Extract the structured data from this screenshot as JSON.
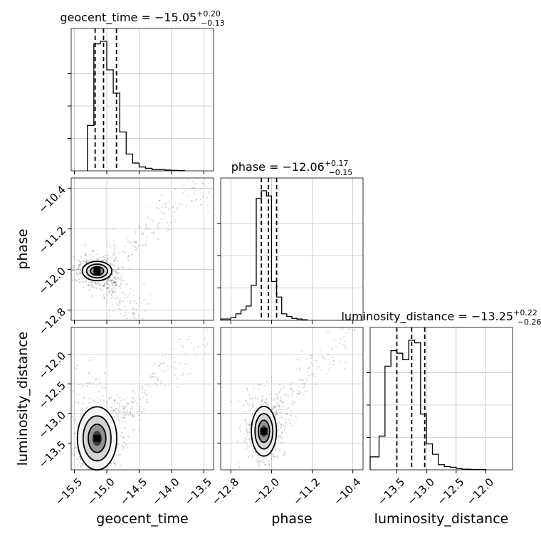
{
  "chart_data": {
    "type": "corner",
    "parameters": [
      "geocent_time",
      "phase",
      "luminosity_distance"
    ],
    "panels": [
      {
        "panel": "hist",
        "param": "geocent_time",
        "title": {
          "name": "geocent_time",
          "value": "−15.05",
          "plus": "+0.20",
          "minus": "−0.13"
        },
        "quantiles": [
          -15.18,
          -15.05,
          -14.85
        ],
        "bin_edges": [
          -15.3,
          -15.2,
          -15.1,
          -15.0,
          -14.9,
          -14.8,
          -14.7,
          -14.6,
          -14.5,
          -14.4,
          -14.3,
          -14.2,
          -14.1,
          -14.0,
          -13.9,
          -13.8
        ],
        "counts": [
          0.35,
          0.98,
          1.0,
          0.78,
          0.6,
          0.3,
          0.13,
          0.06,
          0.03,
          0.02,
          0.01,
          0.01,
          0.006,
          0.004,
          0.002
        ]
      },
      {
        "panel": "hist",
        "param": "phase",
        "title": {
          "name": "phase",
          "value": "−12.06",
          "plus": "+0.17",
          "minus": "−0.15"
        },
        "quantiles": [
          -12.2,
          -12.06,
          -11.9
        ],
        "bin_edges": [
          -13.0,
          -12.8,
          -12.7,
          -12.6,
          -12.5,
          -12.4,
          -12.3,
          -12.2,
          -12.1,
          -12.0,
          -11.9,
          -11.8,
          -11.7,
          -11.6,
          -11.5,
          -11.4,
          -11.3
        ],
        "counts": [
          0.01,
          0.02,
          0.05,
          0.08,
          0.11,
          0.27,
          0.94,
          1.0,
          0.96,
          0.3,
          0.18,
          0.05,
          0.03,
          0.015,
          0.01,
          0.005
        ]
      },
      {
        "panel": "hist",
        "param": "luminosity_distance",
        "title": {
          "name": "luminosity_distance",
          "value": "−13.25",
          "plus": "+0.22",
          "minus": "−0.26"
        },
        "quantiles": [
          -13.5,
          -13.25,
          -13.03
        ],
        "bin_edges": [
          -13.95,
          -13.8,
          -13.7,
          -13.6,
          -13.5,
          -13.4,
          -13.3,
          -13.2,
          -13.1,
          -13.0,
          -12.9,
          -12.8,
          -12.7,
          -12.6,
          -12.5,
          -12.4,
          -12.25,
          -12.0
        ],
        "counts": [
          0.1,
          0.26,
          0.8,
          0.92,
          0.9,
          0.85,
          1.0,
          0.98,
          0.43,
          0.2,
          0.12,
          0.04,
          0.025,
          0.02,
          0.01,
          0.005,
          0.002
        ]
      },
      {
        "panel": "2d",
        "x": "geocent_time",
        "y": "phase",
        "peak": [
          -15.15,
          -12.03
        ],
        "spread": [
          0.12,
          0.1
        ],
        "tail_up": {
          "start": [
            -15.0,
            -11.9
          ],
          "end": [
            -13.5,
            -10.3
          ]
        },
        "tail_down": {
          "start": [
            -15.0,
            -12.2
          ],
          "end": [
            -14.6,
            -12.9
          ]
        }
      },
      {
        "panel": "2d",
        "x": "geocent_time",
        "y": "luminosity_distance",
        "peak": [
          -15.15,
          -13.42
        ],
        "spread": [
          0.16,
          0.28
        ],
        "tail_up": {
          "start": [
            -14.8,
            -13.0
          ],
          "end": [
            -13.5,
            -11.7
          ]
        },
        "tail_down": null
      },
      {
        "panel": "2d",
        "x": "phase",
        "y": "luminosity_distance",
        "peak": [
          -12.15,
          -13.3
        ],
        "spread": [
          0.13,
          0.22
        ],
        "tail_up": {
          "start": [
            -12.0,
            -13.0
          ],
          "end": [
            -10.4,
            -11.6
          ]
        },
        "tail_down": null
      }
    ],
    "axes": {
      "geocent_time": {
        "range": [
          -15.55,
          -13.35
        ],
        "ticks": [
          "−15.5",
          "−15.0",
          "−14.5",
          "−14.0",
          "−13.5"
        ],
        "tick_values": [
          -15.5,
          -15.0,
          -14.5,
          -14.0,
          -13.5
        ]
      },
      "phase": {
        "range": [
          -13.0,
          -10.2
        ],
        "ticks": [
          "−12.8",
          "−12.0",
          "−11.2",
          "−10.4"
        ],
        "tick_values": [
          -12.8,
          -12.0,
          -11.2,
          -10.4
        ]
      },
      "luminosity_distance": {
        "range": [
          -13.95,
          -11.55
        ],
        "ticks": [
          "−13.5",
          "−13.0",
          "−12.5",
          "−12.0"
        ],
        "tick_values": [
          -13.5,
          -13.0,
          -12.5,
          -12.0
        ]
      }
    },
    "xlabels": [
      "geocent_time",
      "phase",
      "luminosity_distance"
    ],
    "ylabels": [
      "phase",
      "luminosity_distance"
    ],
    "grid": true,
    "colors": {
      "line": "#000000",
      "grid": "#b0b0b0",
      "scatter": "#000000"
    }
  }
}
